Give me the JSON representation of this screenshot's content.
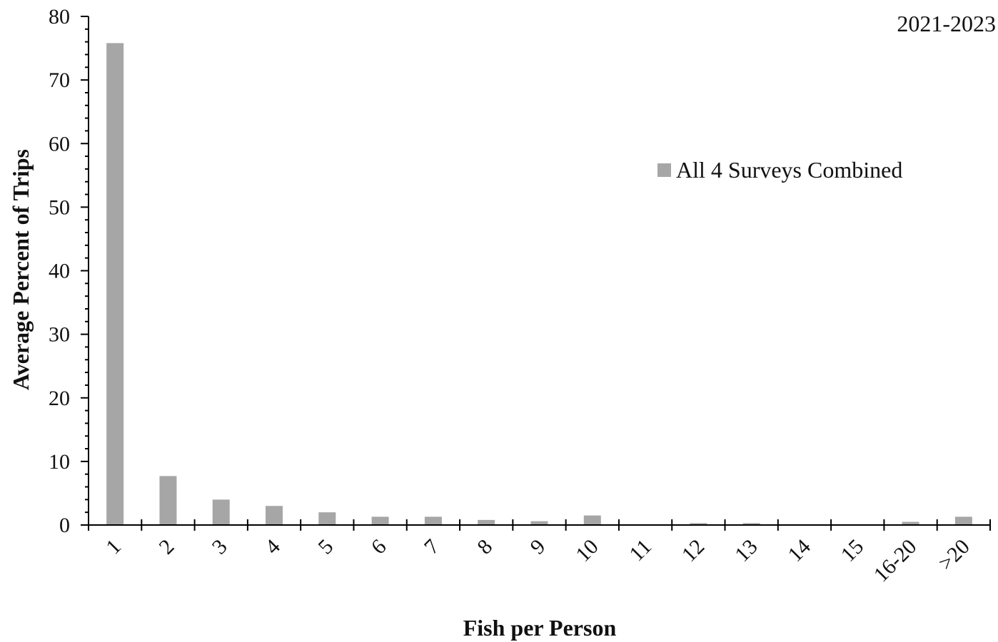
{
  "chart_data": {
    "type": "bar",
    "corner_label": "2021-2023",
    "xlabel": "Fish per Person",
    "ylabel": "Average Percent of Trips",
    "categories": [
      "1",
      "2",
      "3",
      "4",
      "5",
      "6",
      "7",
      "8",
      "9",
      "10",
      "11",
      "12",
      "13",
      "14",
      "15",
      "16-20",
      ">20"
    ],
    "series": [
      {
        "name": "All 4 Surveys Combined",
        "color": "#a6a6a6",
        "values": [
          75.8,
          7.7,
          4.0,
          3.0,
          2.0,
          1.3,
          1.3,
          0.8,
          0.6,
          1.5,
          0.1,
          0.3,
          0.3,
          0.1,
          0.1,
          0.5,
          1.3
        ]
      }
    ],
    "ylim": [
      0,
      80
    ],
    "yticks": [
      0,
      10,
      20,
      30,
      40,
      50,
      60,
      70,
      80
    ],
    "y_minor_step": 2,
    "grid": false,
    "legend_position": "upper-right",
    "xtick_rotation": -45
  }
}
